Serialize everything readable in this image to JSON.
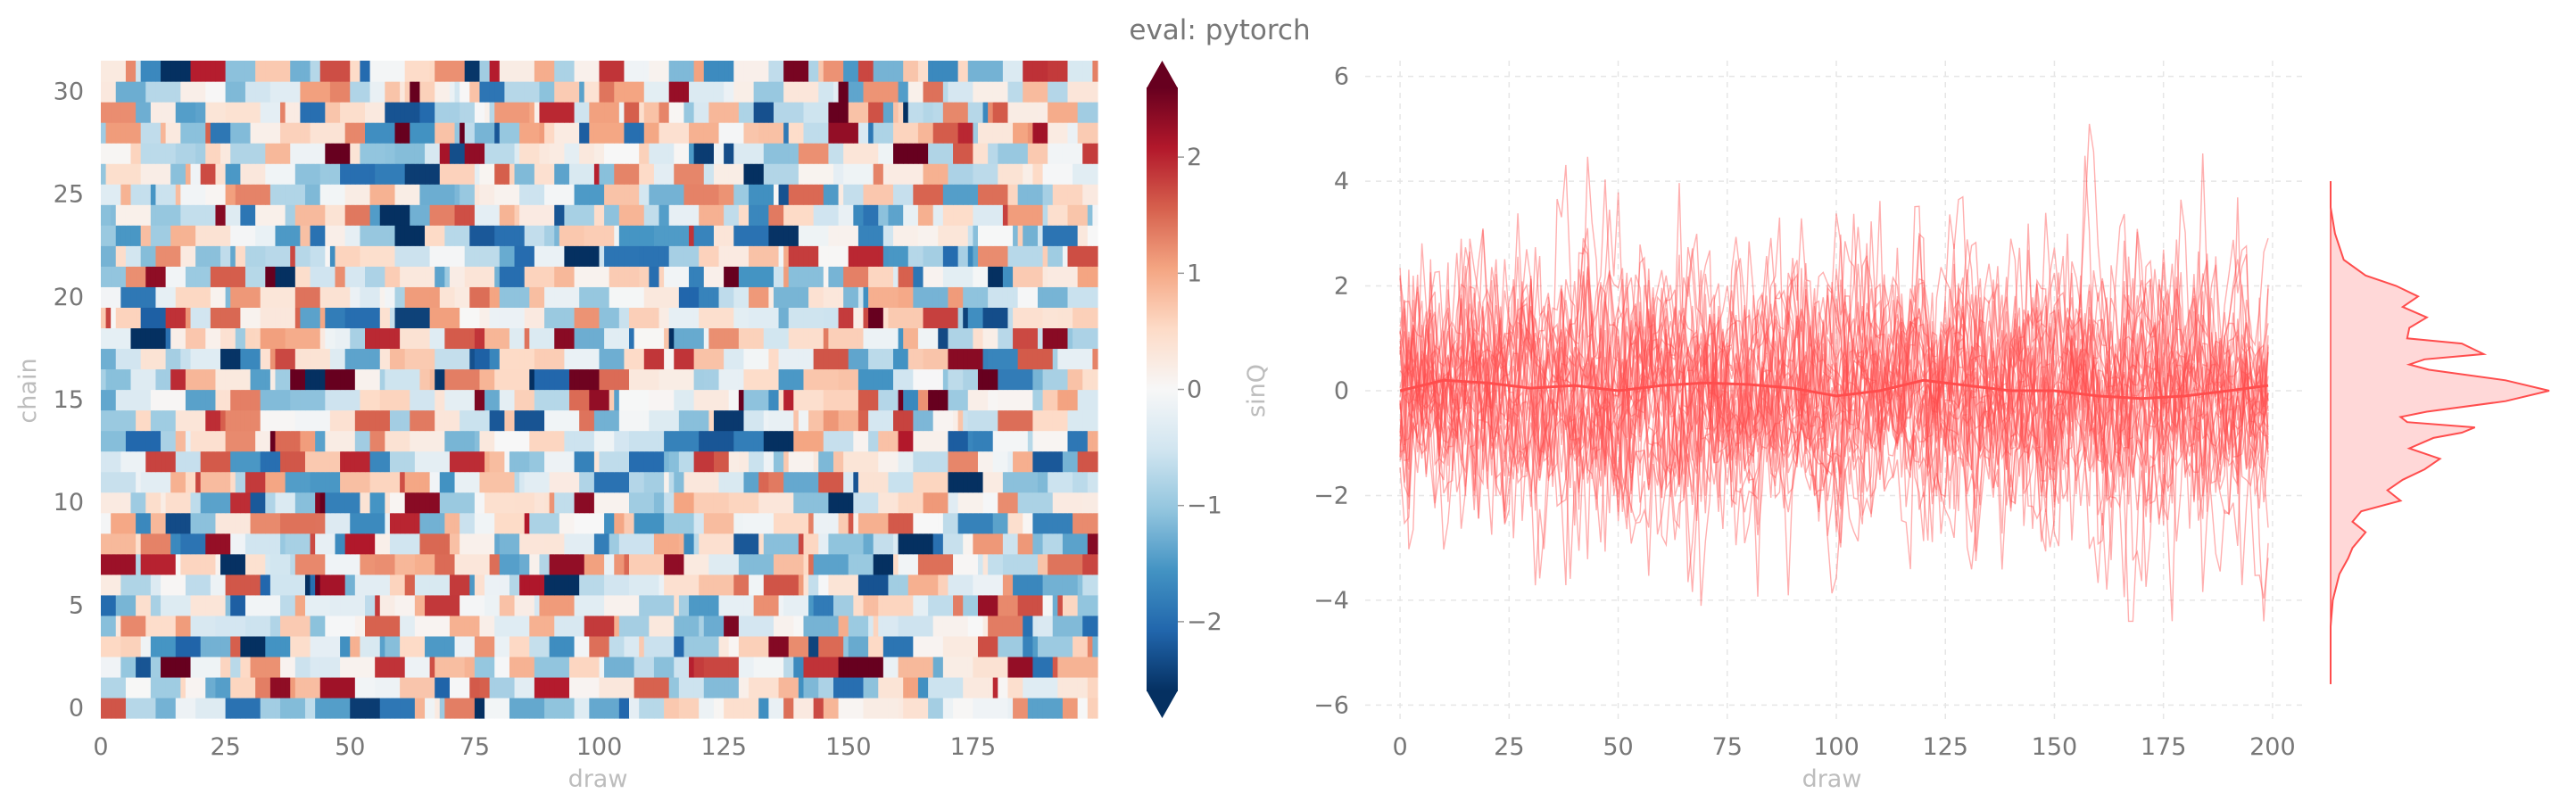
{
  "title": "eval: pytorch",
  "chart_data": [
    {
      "type": "heatmap",
      "title": "",
      "xlabel": "draw",
      "ylabel": "chain",
      "xlim": [
        0,
        200
      ],
      "ylim": [
        0,
        32
      ],
      "x_ticks": [
        0,
        25,
        50,
        75,
        100,
        125,
        150,
        175
      ],
      "y_ticks": [
        0,
        5,
        10,
        15,
        20,
        25,
        30
      ],
      "n_draws": 200,
      "n_chains": 32,
      "colormap": "RdBu_r",
      "colorbar": {
        "label": "sinQ",
        "range": [
          -2.6,
          2.6
        ],
        "ticks": [
          -2,
          -1,
          0,
          1,
          2
        ],
        "tick_labels": [
          "−2",
          "−1",
          "0",
          "1",
          "2"
        ],
        "extend": "both"
      },
      "value_distribution": "random-like, roughly symmetric around 0, spanning about −2.6 to 2.6"
    },
    {
      "type": "line",
      "title": "",
      "xlabel": "draw",
      "ylabel": "",
      "xlim": [
        -8,
        208
      ],
      "ylim": [
        -6.3,
        6.3
      ],
      "x_ticks": [
        0,
        25,
        50,
        75,
        100,
        125,
        150,
        175,
        200
      ],
      "y_ticks": [
        -6,
        -4,
        -2,
        0,
        2,
        4,
        6
      ],
      "y_tick_labels": [
        "−6",
        "−4",
        "−2",
        "0",
        "2",
        "4",
        "6"
      ],
      "grid": true,
      "color": "#ff4d4d",
      "n_series": 32,
      "series_range_y": [
        -4.4,
        5.5
      ],
      "mean_series": {
        "x": [
          0,
          10,
          20,
          30,
          40,
          50,
          60,
          70,
          80,
          90,
          100,
          110,
          120,
          130,
          140,
          150,
          160,
          170,
          180,
          190,
          199
        ],
        "values": [
          0.0,
          0.2,
          0.15,
          0.05,
          0.1,
          0.0,
          0.1,
          0.15,
          0.12,
          0.05,
          -0.1,
          0.0,
          0.2,
          0.1,
          0.0,
          0.0,
          -0.1,
          -0.15,
          -0.1,
          0.0,
          0.1
        ]
      },
      "marginal_density": {
        "orientation": "vertical",
        "fill": true,
        "y": [
          -5.6,
          -4.5,
          -4.0,
          -3.5,
          -3.2,
          -3.0,
          -2.7,
          -2.5,
          -2.3,
          -2.1,
          -1.9,
          -1.7,
          -1.5,
          -1.3,
          -1.1,
          -0.9,
          -0.8,
          -0.7,
          -0.6,
          -0.5,
          -0.4,
          -0.2,
          0.0,
          0.2,
          0.4,
          0.5,
          0.6,
          0.7,
          0.9,
          1.0,
          1.2,
          1.4,
          1.6,
          1.8,
          2.0,
          2.2,
          2.5,
          3.0,
          3.5,
          4.0
        ],
        "density": [
          0.0,
          0.0,
          0.01,
          0.04,
          0.08,
          0.1,
          0.16,
          0.1,
          0.14,
          0.32,
          0.26,
          0.33,
          0.43,
          0.5,
          0.36,
          0.47,
          0.6,
          0.66,
          0.35,
          0.32,
          0.44,
          0.8,
          1.0,
          0.8,
          0.45,
          0.36,
          0.43,
          0.7,
          0.6,
          0.35,
          0.36,
          0.44,
          0.33,
          0.4,
          0.3,
          0.16,
          0.06,
          0.02,
          0.0,
          0.0
        ]
      }
    }
  ]
}
